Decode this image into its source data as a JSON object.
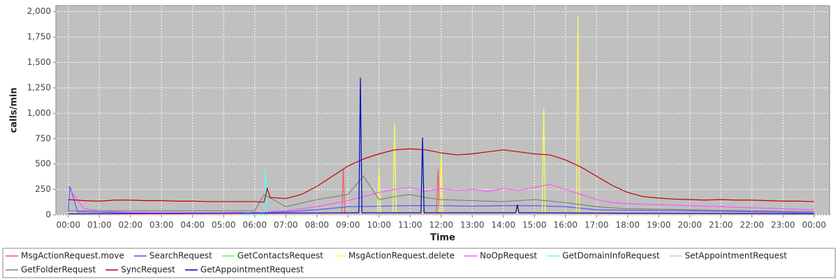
{
  "chart_data": {
    "type": "line",
    "xlabel": "Time",
    "ylabel": "calls/min",
    "xlim": [
      -0.4,
      24.5
    ],
    "ylim": [
      0,
      2060
    ],
    "xticks": [
      {
        "value": 0,
        "label": "00:00"
      },
      {
        "value": 1,
        "label": "01:00"
      },
      {
        "value": 2,
        "label": "02:00"
      },
      {
        "value": 3,
        "label": "03:00"
      },
      {
        "value": 4,
        "label": "04:00"
      },
      {
        "value": 5,
        "label": "05:00"
      },
      {
        "value": 6,
        "label": "06:00"
      },
      {
        "value": 7,
        "label": "07:00"
      },
      {
        "value": 8,
        "label": "08:00"
      },
      {
        "value": 9,
        "label": "09:00"
      },
      {
        "value": 10,
        "label": "10:00"
      },
      {
        "value": 11,
        "label": "11:00"
      },
      {
        "value": 12,
        "label": "12:00"
      },
      {
        "value": 13,
        "label": "13:00"
      },
      {
        "value": 14,
        "label": "14:00"
      },
      {
        "value": 15,
        "label": "15:00"
      },
      {
        "value": 16,
        "label": "16:00"
      },
      {
        "value": 17,
        "label": "17:00"
      },
      {
        "value": 18,
        "label": "18:00"
      },
      {
        "value": 19,
        "label": "19:00"
      },
      {
        "value": 20,
        "label": "20:00"
      },
      {
        "value": 21,
        "label": "21:00"
      },
      {
        "value": 22,
        "label": "22:00"
      },
      {
        "value": 23,
        "label": "23:00"
      },
      {
        "value": 24,
        "label": "00:00"
      }
    ],
    "yticks": [
      0,
      250,
      500,
      750,
      {
        "value": 1000,
        "label": "1,000"
      },
      {
        "value": 1250,
        "label": "1,250"
      },
      {
        "value": 1500,
        "label": "1,500"
      },
      {
        "value": 1750,
        "label": "1,750"
      },
      {
        "value": 2000,
        "label": "2,000"
      }
    ],
    "grid": true,
    "series": [
      {
        "name": "MsgActionRequest.move",
        "color": "#ff5555",
        "x": [
          0,
          8.8,
          8.85,
          8.9,
          11.85,
          11.9,
          11.95,
          24
        ],
        "values": [
          5,
          5,
          450,
          5,
          5,
          450,
          5,
          5
        ]
      },
      {
        "name": "SearchRequest",
        "color": "#5555ff",
        "x": [
          0,
          0.05,
          0.3,
          2,
          5,
          7,
          8,
          9,
          10,
          11,
          12,
          13,
          14,
          15,
          16,
          17,
          18,
          20,
          22,
          24
        ],
        "values": [
          30,
          280,
          30,
          20,
          20,
          30,
          50,
          80,
          85,
          90,
          90,
          85,
          90,
          90,
          80,
          50,
          45,
          40,
          30,
          20
        ]
      },
      {
        "name": "GetContactsRequest",
        "color": "#55ff55",
        "x": [
          0,
          11.35,
          11.4,
          11.45,
          24
        ],
        "values": [
          5,
          5,
          650,
          5,
          5
        ]
      },
      {
        "name": "MsgActionRequest.delete",
        "color": "#ffff55",
        "x": [
          0,
          9.95,
          10,
          10.05,
          10.45,
          10.5,
          10.55,
          11.95,
          12,
          12.05,
          15.25,
          15.3,
          15.35,
          16.35,
          16.4,
          16.45,
          24
        ],
        "values": [
          10,
          20,
          450,
          20,
          20,
          900,
          20,
          20,
          620,
          20,
          20,
          1050,
          20,
          20,
          1950,
          20,
          10
        ]
      },
      {
        "name": "NoOpRequest",
        "color": "#ff55ff",
        "x": [
          0,
          0.5,
          1,
          1.5,
          2,
          3,
          4,
          5,
          6,
          7,
          8,
          9,
          9.5,
          10,
          10.5,
          11,
          11.5,
          12,
          12.5,
          13,
          13.5,
          14,
          14.5,
          15,
          15.5,
          16,
          16.5,
          17,
          17.5,
          18,
          19,
          20,
          21,
          22,
          23,
          24
        ],
        "values": [
          270,
          60,
          40,
          30,
          25,
          20,
          20,
          20,
          25,
          40,
          80,
          140,
          180,
          220,
          250,
          270,
          230,
          260,
          240,
          250,
          230,
          260,
          240,
          270,
          300,
          250,
          200,
          150,
          120,
          110,
          100,
          90,
          80,
          70,
          60,
          50
        ]
      },
      {
        "name": "GetDomainInfoRequest",
        "color": "#55ffff",
        "x": [
          0,
          6.3,
          6.35,
          6.4,
          24
        ],
        "values": [
          5,
          5,
          460,
          5,
          5
        ]
      },
      {
        "name": "SetAppointmentRequest",
        "color": "#ffafaf",
        "x": [
          0,
          5.5,
          6,
          6.5,
          24
        ],
        "values": [
          5,
          5,
          40,
          5,
          5
        ]
      },
      {
        "name": "GetFolderRequest",
        "color": "#808080",
        "x": [
          0,
          3,
          6,
          6.3,
          7,
          8,
          9,
          9.5,
          10,
          10.5,
          11,
          11.5,
          12,
          13,
          14,
          15,
          16,
          17,
          18,
          20,
          24
        ],
        "values": [
          40,
          40,
          40,
          200,
          80,
          150,
          200,
          380,
          150,
          180,
          200,
          170,
          150,
          140,
          130,
          150,
          120,
          80,
          60,
          50,
          30
        ]
      },
      {
        "name": "SyncRequest",
        "color": "#c00000",
        "x": [
          0,
          0.5,
          1,
          1.5,
          2,
          2.5,
          3,
          3.5,
          4,
          4.5,
          5,
          5.5,
          6,
          6.3,
          6.4,
          6.5,
          7,
          7.5,
          8,
          8.5,
          9,
          9.5,
          10,
          10.5,
          11,
          11.5,
          12,
          12.5,
          13,
          13.5,
          14,
          14.5,
          15,
          15.5,
          16,
          16.5,
          17,
          17.5,
          18,
          18.5,
          19,
          19.5,
          20,
          20.5,
          21,
          21.5,
          22,
          22.5,
          23,
          23.5,
          24
        ],
        "values": [
          150,
          140,
          135,
          145,
          145,
          140,
          140,
          135,
          135,
          130,
          130,
          130,
          130,
          125,
          260,
          170,
          160,
          200,
          280,
          380,
          480,
          550,
          600,
          640,
          650,
          640,
          610,
          590,
          600,
          620,
          640,
          620,
          600,
          590,
          540,
          470,
          380,
          290,
          220,
          180,
          165,
          155,
          150,
          145,
          150,
          145,
          145,
          140,
          135,
          135,
          130
        ]
      },
      {
        "name": "GetAppointmentRequest",
        "color": "#0000c0",
        "x": [
          0,
          9.35,
          9.4,
          9.45,
          11.35,
          11.4,
          11.45,
          14.4,
          14.45,
          14.5,
          24
        ],
        "values": [
          10,
          20,
          1350,
          20,
          20,
          760,
          20,
          20,
          100,
          20,
          10
        ]
      }
    ]
  }
}
